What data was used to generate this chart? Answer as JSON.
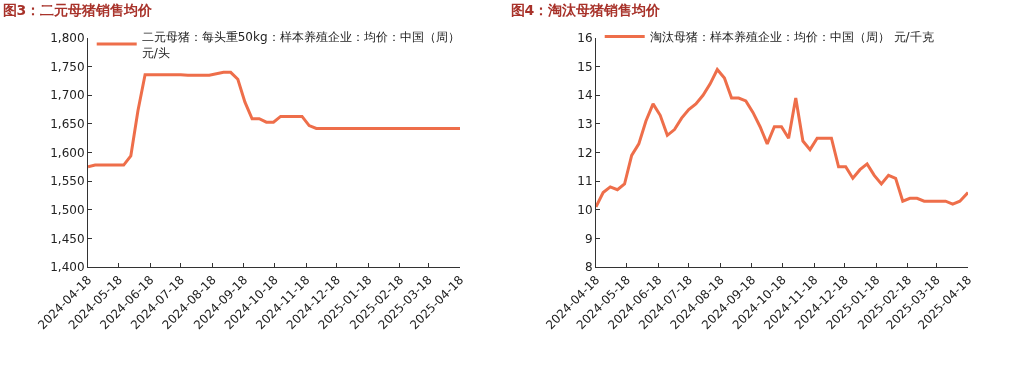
{
  "chart_data": [
    {
      "type": "line",
      "title": "图3：二元母猪销售均价",
      "legend": "top left",
      "grid": false,
      "marker": "none",
      "line_style": "solid",
      "x": [
        "2024-04-18",
        "2024-04-25",
        "2024-05-23",
        "2024-05-30",
        "2024-06-06",
        "2024-06-13",
        "2024-07-18",
        "2024-07-25",
        "2024-08-15",
        "2024-08-29",
        "2024-09-05",
        "2024-09-12",
        "2024-09-19",
        "2024-09-26",
        "2024-10-03",
        "2024-10-10",
        "2024-10-17",
        "2024-10-24",
        "2024-11-14",
        "2024-11-21",
        "2024-11-28",
        "2025-04-18"
      ],
      "series": [
        {
          "name": "二元母猪：每头重50kg：样本养殖企业：均价：中国（周）元/头",
          "color": "#ee6e4a",
          "values": [
            1575,
            1578,
            1578,
            1594,
            1673,
            1736,
            1736,
            1735,
            1735,
            1740,
            1740,
            1728,
            1688,
            1659,
            1659,
            1653,
            1653,
            1663,
            1663,
            1647,
            1642,
            1642
          ]
        }
      ],
      "xlim": [
        "2024-04-18",
        "2025-04-18"
      ],
      "xticks": [
        "2024-04-18",
        "2024-05-18",
        "2024-06-18",
        "2024-07-18",
        "2024-08-18",
        "2024-09-18",
        "2024-10-18",
        "2024-11-18",
        "2024-12-18",
        "2025-01-18",
        "2025-02-18",
        "2025-03-18",
        "2025-04-18"
      ],
      "ylim": [
        1400,
        1800
      ],
      "yticks": [
        {
          "value": 1400,
          "label": "1,400"
        },
        {
          "value": 1450,
          "label": "1,450"
        },
        {
          "value": 1500,
          "label": "1,500"
        },
        {
          "value": 1550,
          "label": "1,550"
        },
        {
          "value": 1600,
          "label": "1,600"
        },
        {
          "value": 1650,
          "label": "1,650"
        },
        {
          "value": 1700,
          "label": "1,700"
        },
        {
          "value": 1750,
          "label": "1,750"
        },
        {
          "value": 1800,
          "label": "1,800"
        }
      ]
    },
    {
      "type": "line",
      "title": "图4：淘汰母猪销售均价",
      "legend": "top left",
      "grid": false,
      "marker": "none",
      "line_style": "solid",
      "x": [
        "2024-04-18",
        "2024-04-25",
        "2024-05-02",
        "2024-05-09",
        "2024-05-16",
        "2024-05-23",
        "2024-05-30",
        "2024-06-06",
        "2024-06-13",
        "2024-06-20",
        "2024-06-27",
        "2024-07-04",
        "2024-07-11",
        "2024-07-18",
        "2024-07-25",
        "2024-08-01",
        "2024-08-08",
        "2024-08-15",
        "2024-08-22",
        "2024-08-29",
        "2024-09-05",
        "2024-09-12",
        "2024-09-19",
        "2024-09-26",
        "2024-10-03",
        "2024-10-10",
        "2024-10-17",
        "2024-10-24",
        "2024-10-31",
        "2024-11-07",
        "2024-11-14",
        "2024-11-21",
        "2024-11-28",
        "2024-12-05",
        "2024-12-12",
        "2024-12-19",
        "2024-12-26",
        "2025-01-02",
        "2025-01-09",
        "2025-01-16",
        "2025-01-23",
        "2025-01-30",
        "2025-02-06",
        "2025-02-13",
        "2025-02-20",
        "2025-02-27",
        "2025-03-06",
        "2025-03-13",
        "2025-03-20",
        "2025-03-27",
        "2025-04-03",
        "2025-04-10",
        "2025-04-18"
      ],
      "series": [
        {
          "name": "淘汰母猪：样本养殖企业：均价：中国（周） 元/千克",
          "color": "#ee6e4a",
          "values": [
            10.1,
            10.6,
            10.8,
            10.7,
            10.9,
            11.9,
            12.3,
            13.1,
            13.7,
            13.3,
            12.6,
            12.8,
            13.2,
            13.5,
            13.7,
            14.0,
            14.4,
            14.9,
            14.6,
            13.9,
            13.9,
            13.8,
            13.4,
            12.9,
            12.3,
            12.9,
            12.9,
            12.5,
            13.9,
            12.4,
            12.1,
            12.5,
            12.5,
            12.5,
            11.5,
            11.5,
            11.1,
            11.4,
            11.6,
            11.2,
            10.9,
            11.2,
            11.1,
            10.3,
            10.4,
            10.4,
            10.3,
            10.3,
            10.3,
            10.3,
            10.2,
            10.3,
            10.6
          ]
        }
      ],
      "xlim": [
        "2024-04-18",
        "2025-04-18"
      ],
      "xticks": [
        "2024-04-18",
        "2024-05-18",
        "2024-06-18",
        "2024-07-18",
        "2024-08-18",
        "2024-09-18",
        "2024-10-18",
        "2024-11-18",
        "2024-12-18",
        "2025-01-18",
        "2025-02-18",
        "2025-03-18",
        "2025-04-18"
      ],
      "ylim": [
        8,
        16
      ],
      "yticks": [
        8,
        9,
        10,
        11,
        12,
        13,
        14,
        15,
        16
      ]
    }
  ]
}
